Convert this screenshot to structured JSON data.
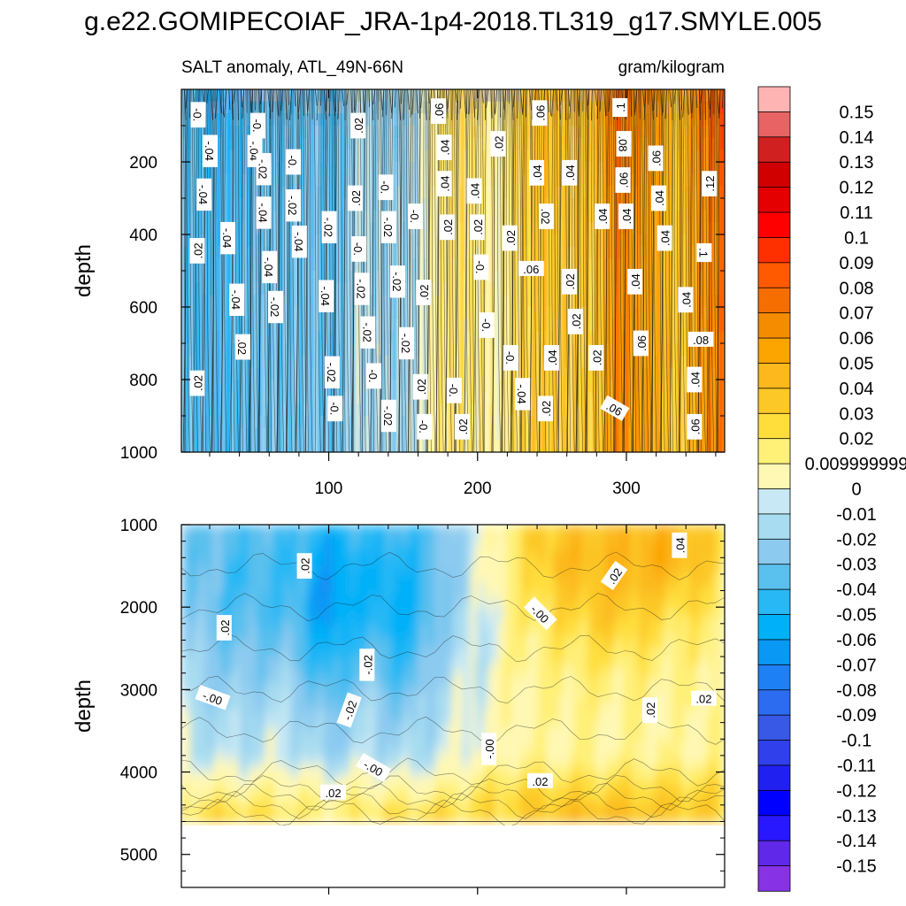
{
  "chart_data": {
    "type": "heatmap",
    "title": "g.e22.GOMIPECOIAF_JRA-1p4-2018.TL319_g17.SMYLE.005",
    "subtitle_left": "SALT anomaly, ATL_49N-66N",
    "subtitle_right": "gram/kilogram",
    "ylabel": "depth",
    "x_range": [
      1,
      366
    ],
    "x_ticks": [
      "100",
      "200",
      "300"
    ],
    "upper_panel": {
      "y_range": [
        0,
        1000
      ],
      "y_ticks": [
        "200",
        "400",
        "600",
        "800",
        "1000"
      ]
    },
    "lower_panel": {
      "y_range": [
        1000,
        5400
      ],
      "y_ticks": [
        "1000",
        "2000",
        "3000",
        "4000",
        "5000"
      ],
      "data_bottom_depth": 4600
    },
    "colorbar": {
      "labels": [
        "0.15",
        "0.14",
        "0.13",
        "0.12",
        "0.11",
        "0.1",
        "0.09",
        "0.08",
        "0.07",
        "0.06",
        "0.05",
        "0.04",
        "0.03",
        "0.02",
        "0.009999999",
        "0",
        "-0.01",
        "-0.02",
        "-0.03",
        "-0.04",
        "-0.05",
        "-0.06",
        "-0.07",
        "-0.08",
        "-0.09",
        "-0.1",
        "-0.11",
        "-0.12",
        "-0.13",
        "-0.14",
        "-0.15"
      ],
      "colors": [
        "#ffb4b4",
        "#e86464",
        "#d02020",
        "#d00000",
        "#e40000",
        "#ff0000",
        "#ff3000",
        "#ff5a00",
        "#f66e00",
        "#f58c00",
        "#fca400",
        "#fcb81c",
        "#fcc828",
        "#ffde3c",
        "#fff078",
        "#fff8b4",
        "#c8e8f5",
        "#a8dcf0",
        "#8ccaf0",
        "#5ac0ee",
        "#28b8f5",
        "#00b0f8",
        "#0a98f5",
        "#1e80f5",
        "#2c6cf0",
        "#3858e6",
        "#3040ea",
        "#2020f0",
        "#0000ff",
        "#2818ff",
        "#6028e8",
        "#8832e6"
      ]
    },
    "upper_contour_labels": [
      {
        "t": "-0.",
        "x": 12,
        "d": 70,
        "r": 90
      },
      {
        "t": "-.04",
        "x": 20,
        "d": 170,
        "r": 90
      },
      {
        "t": "-.04",
        "x": 16,
        "d": 290,
        "r": 90
      },
      {
        "t": ".02",
        "x": 12,
        "d": 445,
        "r": -90
      },
      {
        "t": "-.04",
        "x": 50,
        "d": 170,
        "r": 90
      },
      {
        "t": "-.04",
        "x": 32,
        "d": 410,
        "r": 90
      },
      {
        "t": "-.04",
        "x": 38,
        "d": 580,
        "r": 90
      },
      {
        "t": ".02",
        "x": 42,
        "d": 710,
        "r": 90
      },
      {
        "t": ".02",
        "x": 12,
        "d": 810,
        "r": -90
      },
      {
        "t": "-0.",
        "x": 52,
        "d": 100,
        "r": 90
      },
      {
        "t": "-.02",
        "x": 56,
        "d": 220,
        "r": 90
      },
      {
        "t": "-.04",
        "x": 56,
        "d": 340,
        "r": 90
      },
      {
        "t": "-.04",
        "x": 60,
        "d": 490,
        "r": 90
      },
      {
        "t": "-.02",
        "x": 64,
        "d": 600,
        "r": 90
      },
      {
        "t": "-0.",
        "x": 76,
        "d": 200,
        "r": 90
      },
      {
        "t": "-.02",
        "x": 76,
        "d": 320,
        "r": 90
      },
      {
        "t": "-.04",
        "x": 80,
        "d": 420,
        "r": 90
      },
      {
        "t": "-.02",
        "x": 100,
        "d": 380,
        "r": 90
      },
      {
        "t": "-.04",
        "x": 98,
        "d": 570,
        "r": 90
      },
      {
        "t": "-.02",
        "x": 102,
        "d": 780,
        "r": 90
      },
      {
        "t": "-0.",
        "x": 104,
        "d": 880,
        "r": 90
      },
      {
        "t": ".02",
        "x": 120,
        "d": 100,
        "r": -90
      },
      {
        "t": ".02",
        "x": 118,
        "d": 300,
        "r": -90
      },
      {
        "t": "-0.",
        "x": 120,
        "d": 440,
        "r": 90
      },
      {
        "t": "-.02",
        "x": 122,
        "d": 550,
        "r": 90
      },
      {
        "t": "-.02",
        "x": 126,
        "d": 670,
        "r": 90
      },
      {
        "t": "-0.",
        "x": 130,
        "d": 790,
        "r": 90
      },
      {
        "t": "-0.",
        "x": 138,
        "d": 270,
        "r": 90
      },
      {
        "t": "-.02",
        "x": 140,
        "d": 380,
        "r": 90
      },
      {
        "t": "-.02",
        "x": 146,
        "d": 530,
        "r": 90
      },
      {
        "t": "-.02",
        "x": 152,
        "d": 700,
        "r": 90
      },
      {
        "t": "-.02",
        "x": 140,
        "d": 900,
        "r": 90
      },
      {
        "t": "-0.",
        "x": 158,
        "d": 350,
        "r": 90
      },
      {
        "t": ".02",
        "x": 164,
        "d": 560,
        "r": -90
      },
      {
        "t": ".02",
        "x": 162,
        "d": 820,
        "r": -90
      },
      {
        "t": "-0.",
        "x": 164,
        "d": 930,
        "r": 90
      },
      {
        "t": ".06",
        "x": 174,
        "d": 60,
        "r": -90
      },
      {
        "t": ".04",
        "x": 178,
        "d": 160,
        "r": -90
      },
      {
        "t": ".04",
        "x": 178,
        "d": 260,
        "r": -90
      },
      {
        "t": ".02",
        "x": 180,
        "d": 380,
        "r": -90
      },
      {
        "t": "-0.",
        "x": 184,
        "d": 830,
        "r": 90
      },
      {
        "t": ".02",
        "x": 190,
        "d": 930,
        "r": -90
      },
      {
        "t": ".04",
        "x": 198,
        "d": 280,
        "r": -90
      },
      {
        "t": ".02",
        "x": 200,
        "d": 380,
        "r": -90
      },
      {
        "t": "-0.",
        "x": 202,
        "d": 490,
        "r": 90
      },
      {
        "t": "-0.",
        "x": 206,
        "d": 650,
        "r": 90
      },
      {
        "t": ".02",
        "x": 214,
        "d": 150,
        "r": -90
      },
      {
        "t": ".02",
        "x": 222,
        "d": 410,
        "r": -90
      },
      {
        "t": "-0.",
        "x": 222,
        "d": 740,
        "r": 90
      },
      {
        "t": "-.04",
        "x": 230,
        "d": 840,
        "r": 90
      },
      {
        "t": ".04",
        "x": 240,
        "d": 230,
        "r": -90
      },
      {
        "t": ".06",
        "x": 236,
        "d": 495,
        "r": 0
      },
      {
        "t": ".06",
        "x": 242,
        "d": 65,
        "r": -90
      },
      {
        "t": ".04",
        "x": 250,
        "d": 740,
        "r": -90
      },
      {
        "t": ".02",
        "x": 246,
        "d": 880,
        "r": -90
      },
      {
        "t": ".02",
        "x": 246,
        "d": 350,
        "r": 90
      },
      {
        "t": ".04",
        "x": 262,
        "d": 230,
        "r": -90
      },
      {
        "t": ".02",
        "x": 262,
        "d": 530,
        "r": -90
      },
      {
        "t": ".02",
        "x": 266,
        "d": 640,
        "r": -90
      },
      {
        "t": ".02",
        "x": 280,
        "d": 740,
        "r": -90
      },
      {
        "t": ".04",
        "x": 284,
        "d": 350,
        "r": -90
      },
      {
        "t": ".06",
        "x": 292,
        "d": 880,
        "r": 30
      },
      {
        "t": ".1",
        "x": 296,
        "d": 50,
        "r": -90
      },
      {
        "t": ".08",
        "x": 298,
        "d": 150,
        "r": 90
      },
      {
        "t": ".06",
        "x": 298,
        "d": 250,
        "r": -90
      },
      {
        "t": ".04",
        "x": 300,
        "d": 350,
        "r": -90
      },
      {
        "t": ".04",
        "x": 306,
        "d": 530,
        "r": -90
      },
      {
        "t": ".06",
        "x": 310,
        "d": 700,
        "r": -90
      },
      {
        "t": ".06",
        "x": 320,
        "d": 190,
        "r": -90
      },
      {
        "t": ".04",
        "x": 322,
        "d": 300,
        "r": -90
      },
      {
        "t": ".04",
        "x": 326,
        "d": 410,
        "r": -90
      },
      {
        "t": ".04",
        "x": 340,
        "d": 580,
        "r": -90
      },
      {
        "t": ".08",
        "x": 350,
        "d": 690,
        "r": 0
      },
      {
        "t": ".04",
        "x": 346,
        "d": 800,
        "r": -90
      },
      {
        "t": ".06",
        "x": 346,
        "d": 930,
        "r": -90
      },
      {
        "t": ".12",
        "x": 356,
        "d": 260,
        "r": -90
      },
      {
        "t": ".1",
        "x": 352,
        "d": 450,
        "r": 90
      }
    ],
    "lower_contour_labels": [
      {
        "t": ".02",
        "x": 84,
        "d": 1500,
        "r": -90
      },
      {
        "t": ".02",
        "x": 30,
        "d": 2250,
        "r": -90
      },
      {
        "t": "-.00",
        "x": 22,
        "d": 3100,
        "r": 20
      },
      {
        "t": "-.02",
        "x": 126,
        "d": 2700,
        "r": -90
      },
      {
        "t": "-.02",
        "x": 114,
        "d": 3250,
        "r": -70
      },
      {
        "t": "-.00",
        "x": 130,
        "d": 3950,
        "r": 30
      },
      {
        "t": ".02",
        "x": 103,
        "d": 4250,
        "r": 0
      },
      {
        "t": "-.00",
        "x": 208,
        "d": 3720,
        "r": -90
      },
      {
        "t": ".02",
        "x": 242,
        "d": 4110,
        "r": 0
      },
      {
        "t": "-.00",
        "x": 242,
        "d": 2080,
        "r": 45
      },
      {
        "t": ".02",
        "x": 292,
        "d": 1620,
        "r": -55
      },
      {
        "t": ".04",
        "x": 336,
        "d": 1250,
        "r": -90
      },
      {
        "t": ".02",
        "x": 316,
        "d": 3250,
        "r": -90
      },
      {
        "t": ".02",
        "x": 352,
        "d": 3110,
        "r": 0
      }
    ]
  }
}
